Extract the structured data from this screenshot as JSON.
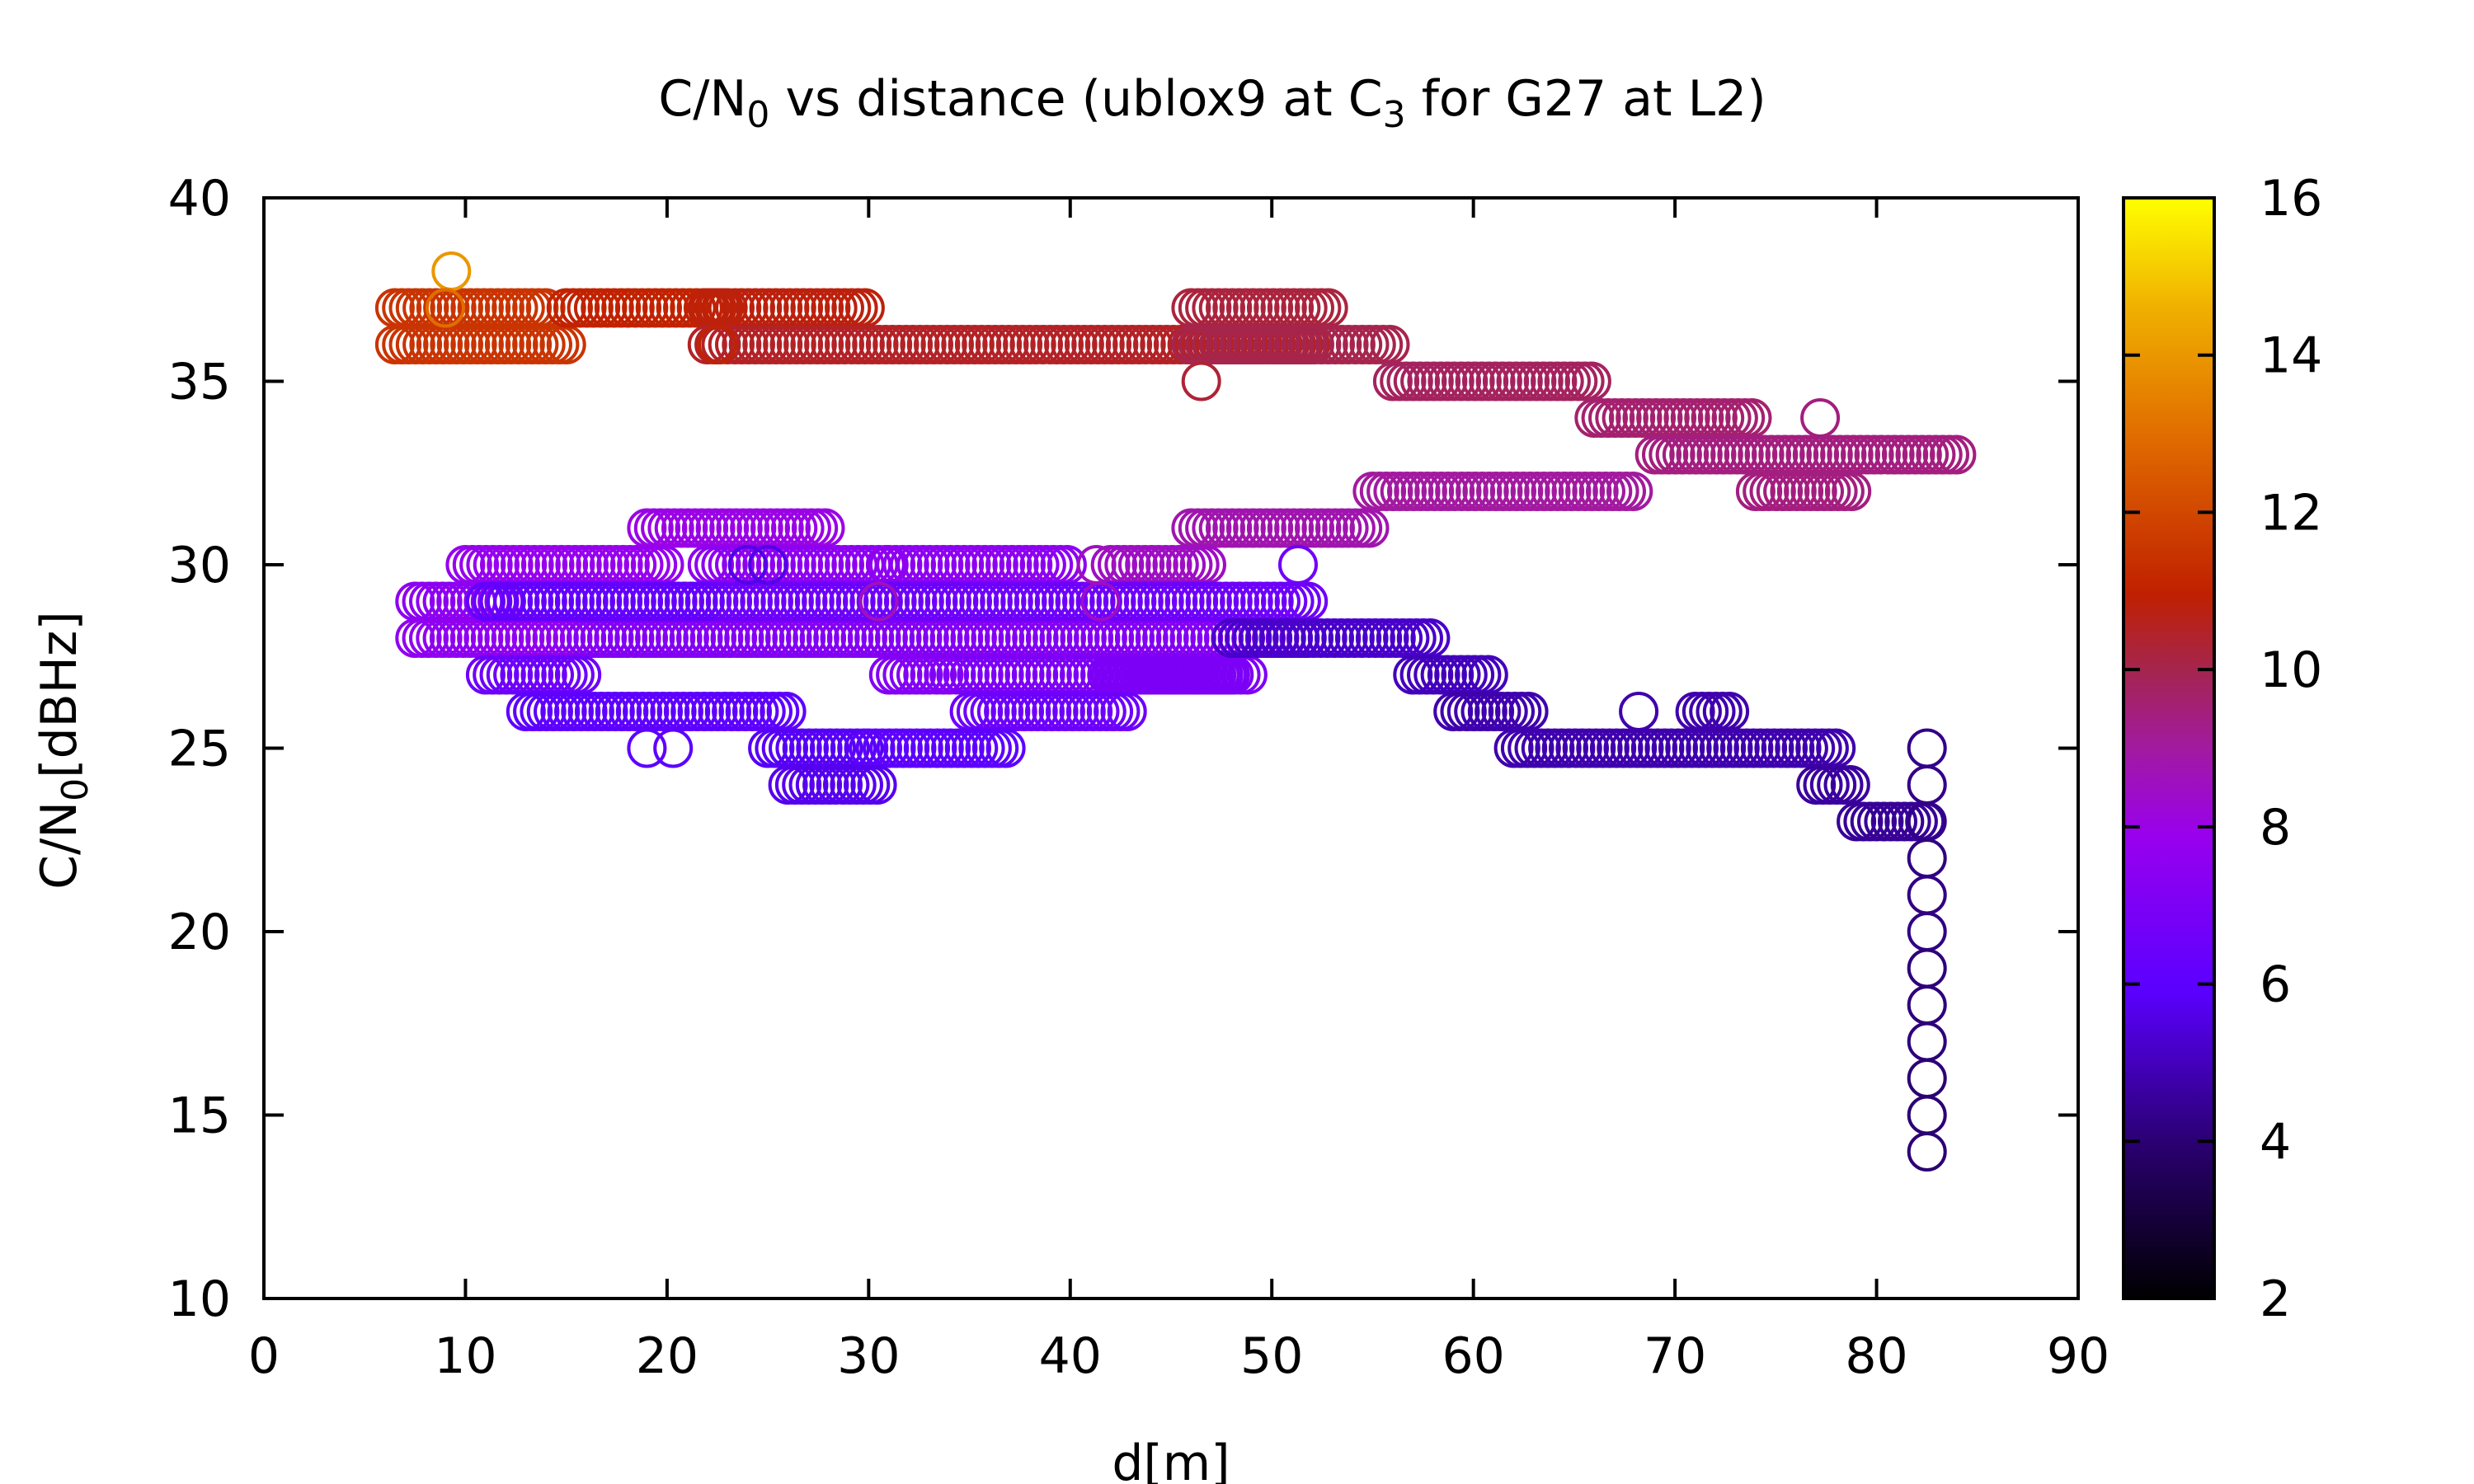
{
  "chart_data": {
    "type": "scatter",
    "title_parts": [
      "C/N",
      "0",
      " vs distance (ublox9 at C",
      "3",
      " for G27 at L2)"
    ],
    "xlabel": "d[m]",
    "ylabel_parts": [
      "C/N",
      "0",
      "[dBHz]"
    ],
    "xlim": [
      0,
      90
    ],
    "ylim": [
      10,
      40
    ],
    "x_ticks": [
      0,
      10,
      20,
      30,
      40,
      50,
      60,
      70,
      80,
      90
    ],
    "y_ticks": [
      10,
      15,
      20,
      25,
      30,
      35,
      40
    ],
    "x_tick_labels": [
      "0",
      "10",
      "20",
      "30",
      "40",
      "50",
      "60",
      "70",
      "80",
      "90"
    ],
    "y_tick_labels": [
      "10",
      "15",
      "20",
      "25",
      "30",
      "35",
      "40"
    ],
    "marker": "open-circle",
    "colorbar": {
      "range": [
        2,
        16
      ],
      "ticks": [
        2,
        4,
        6,
        8,
        10,
        12,
        14,
        16
      ],
      "tick_labels": [
        "2",
        "4",
        "6",
        "8",
        "10",
        "12",
        "14",
        "16"
      ],
      "palette": "black-blue-purple-red-orange-yellow",
      "placement": "right"
    },
    "grid": false,
    "series": [
      {
        "x_start": 6.5,
        "x_end": 14,
        "y": 37,
        "c": 11.5
      },
      {
        "x_start": 6.5,
        "x_end": 15,
        "y": 36,
        "c": 11.5
      },
      {
        "x_start": 15,
        "x_end": 23,
        "y": 37,
        "c": 11
      },
      {
        "x_start": 22,
        "x_end": 30,
        "y": 37,
        "c": 10.8
      },
      {
        "x_start": 22,
        "x_end": 52,
        "y": 36,
        "c": 10.5
      },
      {
        "x_start": 46,
        "x_end": 53,
        "y": 37,
        "c": 10.2
      },
      {
        "x_start": 46,
        "x_end": 56,
        "y": 36,
        "c": 10
      },
      {
        "x_start": 56,
        "x_end": 66,
        "y": 35,
        "c": 9.8
      },
      {
        "x_start": 66,
        "x_end": 74,
        "y": 34,
        "c": 9.6
      },
      {
        "x_start": 69,
        "x_end": 84,
        "y": 33,
        "c": 9.4
      },
      {
        "x_start": 74,
        "x_end": 79,
        "y": 32,
        "c": 9.4
      },
      {
        "x_start": 55,
        "x_end": 68,
        "y": 32,
        "c": 9
      },
      {
        "x_start": 46,
        "x_end": 55,
        "y": 31,
        "c": 8.8
      },
      {
        "x_start": 42,
        "x_end": 47,
        "y": 30,
        "c": 8.5
      },
      {
        "x_start": 19,
        "x_end": 28,
        "y": 31,
        "c": 8
      },
      {
        "x_start": 10,
        "x_end": 20,
        "y": 30,
        "c": 7.8
      },
      {
        "x_start": 22,
        "x_end": 31,
        "y": 30,
        "c": 7.5
      },
      {
        "x_start": 31,
        "x_end": 40,
        "y": 30,
        "c": 7.5
      },
      {
        "x_start": 7.5,
        "x_end": 12,
        "y": 29,
        "c": 7.5
      },
      {
        "x_start": 7.5,
        "x_end": 52,
        "y": 28,
        "c": 7.6
      },
      {
        "x_start": 16,
        "x_end": 52,
        "y": 28,
        "c": 7.2
      },
      {
        "x_start": 11,
        "x_end": 52,
        "y": 29,
        "c": 6.5
      },
      {
        "x_start": 11,
        "x_end": 22,
        "y": 29,
        "c": 6.2
      },
      {
        "x_start": 34,
        "x_end": 48,
        "y": 27,
        "c": 7
      },
      {
        "x_start": 42,
        "x_end": 49,
        "y": 27,
        "c": 7
      },
      {
        "x_start": 31,
        "x_end": 34,
        "y": 27,
        "c": 7.2
      },
      {
        "x_start": 11,
        "x_end": 16,
        "y": 27,
        "c": 6.5
      },
      {
        "x_start": 13,
        "x_end": 26,
        "y": 26,
        "c": 6
      },
      {
        "x_start": 35,
        "x_end": 43,
        "y": 26,
        "c": 6.5
      },
      {
        "x_start": 25,
        "x_end": 30,
        "y": 25,
        "c": 5.8
      },
      {
        "x_start": 30,
        "x_end": 37,
        "y": 25,
        "c": 6
      },
      {
        "x_start": 26,
        "x_end": 30.5,
        "y": 24,
        "c": 5.7
      },
      {
        "x_start": 48,
        "x_end": 58,
        "y": 28,
        "c": 5.2
      },
      {
        "x_start": 57,
        "x_end": 61,
        "y": 27,
        "c": 5
      },
      {
        "x_start": 59,
        "x_end": 63,
        "y": 26,
        "c": 4.8
      },
      {
        "x_start": 62,
        "x_end": 78,
        "y": 25,
        "c": 4.8
      },
      {
        "x_start": 71,
        "x_end": 73,
        "y": 26,
        "c": 4.8
      },
      {
        "x_start": 77,
        "x_end": 79,
        "y": 24,
        "c": 4.6
      },
      {
        "x_start": 79,
        "x_end": 82.5,
        "y": 23,
        "c": 4.5
      }
    ],
    "extra_points": [
      {
        "x": 9.3,
        "y": 38,
        "c": 14
      },
      {
        "x": 9,
        "y": 37,
        "c": 13
      },
      {
        "x": 22.5,
        "y": 36,
        "c": 11
      },
      {
        "x": 46.5,
        "y": 35,
        "c": 10.3
      },
      {
        "x": 77.2,
        "y": 34,
        "c": 9.4
      },
      {
        "x": 41.3,
        "y": 30,
        "c": 8.6
      },
      {
        "x": 51.3,
        "y": 30,
        "c": 6.6
      },
      {
        "x": 30.5,
        "y": 29,
        "c": 8.6
      },
      {
        "x": 41.5,
        "y": 29,
        "c": 8.4
      },
      {
        "x": 19,
        "y": 25,
        "c": 6
      },
      {
        "x": 20.3,
        "y": 25,
        "c": 6
      },
      {
        "x": 68.2,
        "y": 26,
        "c": 4.8
      },
      {
        "x": 24,
        "y": 30,
        "c": 5.6
      },
      {
        "x": 25,
        "y": 30,
        "c": 5.6
      },
      {
        "x": 82.5,
        "y": 25,
        "c": 4.3
      },
      {
        "x": 82.5,
        "y": 24,
        "c": 4.3
      },
      {
        "x": 82.5,
        "y": 23,
        "c": 4.3
      },
      {
        "x": 82.5,
        "y": 22,
        "c": 4.2
      },
      {
        "x": 82.5,
        "y": 21,
        "c": 4.2
      },
      {
        "x": 82.5,
        "y": 20,
        "c": 4.2
      },
      {
        "x": 82.5,
        "y": 19,
        "c": 4.1
      },
      {
        "x": 82.5,
        "y": 18,
        "c": 4.1
      },
      {
        "x": 82.5,
        "y": 17,
        "c": 4.1
      },
      {
        "x": 82.5,
        "y": 16,
        "c": 4
      },
      {
        "x": 82.5,
        "y": 15,
        "c": 4
      },
      {
        "x": 82.5,
        "y": 14,
        "c": 4
      }
    ]
  }
}
